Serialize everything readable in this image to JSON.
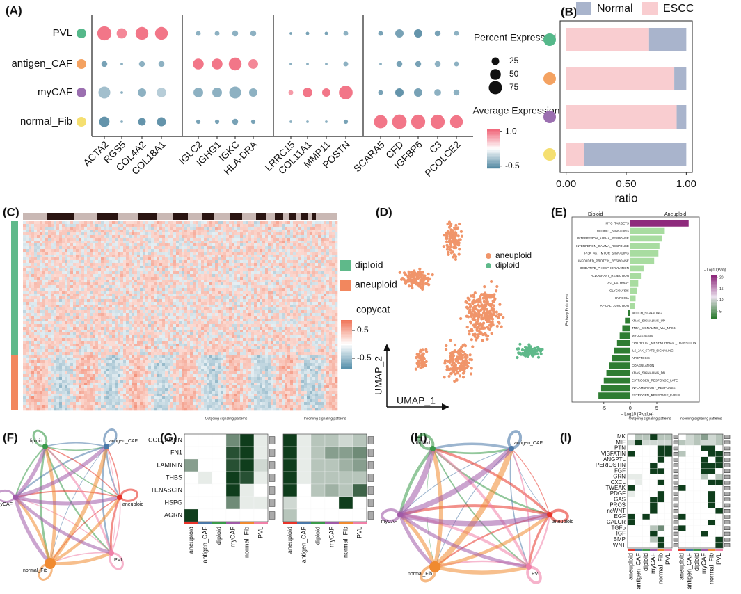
{
  "chart_data": [
    {
      "type": "bubble",
      "label": "(A)",
      "categories": [
        "ACTA2",
        "RGS5",
        "COL4A2",
        "COL18A1",
        "IGLC2",
        "IGHG1",
        "IGKC",
        "HLA-DRA",
        "LRRC15",
        "COL11A1",
        "MMP11",
        "POSTN",
        "SCARA5",
        "CFD",
        "IGFBP6",
        "C3",
        "PCOLCE2"
      ],
      "row_colors": [
        "#55b88a",
        "#f4a261",
        "#9b6fb0",
        "#f5df70"
      ],
      "series": [
        {
          "name": "PVL",
          "sizes": [
            85,
            45,
            70,
            70,
            10,
            10,
            15,
            15,
            3,
            5,
            5,
            10,
            10,
            30,
            30,
            15,
            10
          ],
          "values": [
            1.0,
            0.9,
            1.0,
            1.0,
            -0.3,
            -0.3,
            -0.3,
            -0.3,
            -0.4,
            -0.4,
            -0.4,
            -0.3,
            -0.4,
            -0.4,
            -0.5,
            -0.4,
            -0.3
          ]
        },
        {
          "name": "antigen_CAF",
          "sizes": [
            15,
            3,
            15,
            15,
            50,
            50,
            70,
            40,
            3,
            3,
            3,
            10,
            3,
            15,
            15,
            15,
            10
          ],
          "values": [
            -0.4,
            -0.3,
            -0.3,
            -0.3,
            1.0,
            1.0,
            1.0,
            0.9,
            -0.3,
            -0.3,
            -0.3,
            -0.3,
            -0.3,
            -0.4,
            -0.4,
            -0.3,
            -0.3
          ]
        },
        {
          "name": "myCAF",
          "sizes": [
            60,
            3,
            30,
            40,
            40,
            40,
            60,
            30,
            10,
            40,
            30,
            80,
            10,
            30,
            30,
            20,
            15
          ],
          "values": [
            -0.2,
            -0.3,
            -0.3,
            -0.1,
            -0.3,
            -0.3,
            -0.3,
            -0.3,
            0.8,
            1.0,
            1.0,
            1.0,
            -0.4,
            -0.5,
            -0.4,
            -0.3,
            -0.3
          ]
        },
        {
          "name": "normal_Fib",
          "sizes": [
            45,
            3,
            25,
            35,
            8,
            8,
            15,
            8,
            3,
            3,
            3,
            8,
            75,
            90,
            85,
            85,
            70
          ],
          "values": [
            -0.5,
            -0.3,
            -0.5,
            -0.5,
            -0.4,
            -0.4,
            -0.4,
            -0.4,
            -0.3,
            -0.3,
            -0.3,
            -0.4,
            1.0,
            1.0,
            1.0,
            1.0,
            1.0
          ]
        }
      ],
      "size_legend_title": "Percent Expressed",
      "size_ticks": [
        25,
        50,
        75
      ],
      "color_legend_title": "Average Expression",
      "clim": [
        -0.6,
        1.1
      ],
      "color_ticks": [
        {
          "value": 1,
          "label": "1.0"
        },
        -0.5
      ],
      "low_color": "#4f86a0",
      "mid_color": "#ffffff",
      "high_color": "#f06478"
    },
    {
      "type": "stacked-barh",
      "label": "(B)",
      "xlabel": "ratio",
      "xlim": [
        -0.05,
        1.05
      ],
      "xticks": [
        {
          "value": 0,
          "label": "0.00"
        },
        {
          "value": 0.5,
          "label": "0.50"
        },
        {
          "value": 1,
          "label": "1.00"
        }
      ],
      "series": [
        {
          "name": "Normal",
          "color": "#a9b4cc",
          "values": [
            0.31,
            0.1,
            0.08,
            0.85
          ]
        },
        {
          "name": "ESCC",
          "color": "#f9cdd0",
          "values": [
            0.69,
            0.9,
            0.92,
            0.15
          ]
        }
      ]
    },
    {
      "type": "heatmap-texture",
      "label": "(C)",
      "groups": [
        {
          "name": "diploid",
          "color": "#5fb98a"
        },
        {
          "name": "aneuploid",
          "color": "#f2875e"
        }
      ],
      "color_legend_title": "copycat",
      "color_ticks": [
        0.5,
        -0.5
      ]
    },
    {
      "type": "scatter-texture",
      "label": "(D)",
      "xlabel": "UMAP_1",
      "ylabel": "UMAP_2",
      "groups": [
        {
          "name": "aneuploid",
          "color": "#f0956a"
        },
        {
          "name": "diploid",
          "color": "#5fb98a"
        }
      ]
    },
    {
      "type": "barh",
      "label": "(E)",
      "left_title": "Diploid",
      "right_title": "Aneuploid",
      "ylabel": "Pathway Enrichment",
      "xlabel": "– Log10 (P value)",
      "legend_title": "– Log10(Padj)",
      "categories": [
        "MYC_TARGETS",
        "MTORC1_SIGNALING",
        "INTERFERON_ALPHA_RESPONSE",
        "INTERFERON_GAMMA_RESPONSE",
        "PI3K_AKT_MTOR_SIGNALING",
        "UNFOLDED_PROTEIN_RESPONSE",
        "OXIDATIVE_PHOSPHORYLATION",
        "ALLOGRAFT_REJECTION",
        "P53_PATHWAY",
        "GLYCOLYSIS",
        "HYPOXIA",
        "APICAL_JUNCTION",
        "NOTCH_SIGNALING",
        "KRAS_SIGNALING_UP",
        "TNFA_SIGNALING_VIA_NFKB",
        "MYOGENESIS",
        "EPITHELIAL_MESENCHYMAL_TRANSITION",
        "IL6_JAK_STAT3_SIGNALING",
        "APOPTOSIS",
        "COAGULATION",
        "KRAS_SIGNALING_DN",
        "ESTROGEN_RESPONSE_LATE",
        "INFLAMMATORY_RESPONSE",
        "ESTROGEN_RESPONSE_EARLY"
      ],
      "values": [
        11,
        6.5,
        6,
        5.5,
        5.3,
        4.5,
        2.5,
        2,
        1.5,
        1.2,
        1,
        0.8,
        -0.5,
        -1,
        -1.5,
        -2,
        -2.5,
        -3,
        -3.5,
        -4,
        -4.5,
        -5,
        -5.5,
        -6
      ],
      "top_color": "#8e2a7c",
      "positive_color": "#a8dca0",
      "negative_color": "#2e7d32",
      "xlim": [
        -11,
        13
      ],
      "xticks": [
        -5,
        0,
        5
      ],
      "colorbar_ticks": [
        5,
        10,
        15,
        20
      ],
      "clim": [
        2,
        21
      ]
    },
    {
      "type": "network",
      "label": "(F)",
      "nodes": [
        {
          "name": "diploid",
          "color": "#3a9a4a"
        },
        {
          "name": "antigen_CAF",
          "color": "#4a78a8"
        },
        {
          "name": "aneuploid",
          "color": "#e8342a"
        },
        {
          "name": "PVL",
          "color": "#f080a8"
        },
        {
          "name": "normal_Fib",
          "color": "#f08a30"
        },
        {
          "name": "myCAF",
          "color": "#a05aa8"
        }
      ]
    },
    {
      "type": "signaling-heatmap",
      "label": "(G)",
      "titles": [
        "Outgoing signaling patterns",
        "Incoming signaling patterns"
      ],
      "rows": [
        "COLLAGEN",
        "FN1",
        "LAMININ",
        "THBS",
        "TENASCIN",
        "HSPG",
        "AGRN"
      ],
      "columns": [
        "aneuploid",
        "antigen_CAF",
        "diploid",
        "myCAF",
        "normal_Fib",
        "PVL"
      ],
      "column_colors": [
        "#e8342a",
        "#4a78a8",
        "#3a9a4a",
        "#a05aa8",
        "#f08a30",
        "#f080a8"
      ],
      "outgoing": [
        [
          0,
          0,
          0,
          0.6,
          1,
          0.1
        ],
        [
          0,
          0,
          0,
          0.9,
          1,
          0.1
        ],
        [
          0.5,
          0,
          0,
          0.9,
          1,
          0.2
        ],
        [
          0,
          0.1,
          0,
          1,
          0.9,
          0.1
        ],
        [
          0,
          0,
          0,
          1,
          0.1,
          0
        ],
        [
          0,
          0,
          0,
          0.6,
          0.1,
          0.1
        ],
        [
          1,
          0,
          0,
          0,
          0,
          0
        ]
      ],
      "incoming": [
        [
          1,
          0.1,
          0.3,
          0.3,
          0.2,
          0.3
        ],
        [
          1,
          0.1,
          0.3,
          0.5,
          0.5,
          0.6
        ],
        [
          1,
          0.1,
          0.3,
          0.3,
          0.4,
          0.5
        ],
        [
          1,
          0.1,
          0.3,
          0.3,
          0.3,
          0.3
        ],
        [
          1,
          0,
          0.3,
          0.4,
          0.3,
          0.8
        ],
        [
          0.2,
          0,
          0,
          0,
          1,
          0
        ],
        [
          0.3,
          0,
          0,
          0,
          0,
          0
        ]
      ],
      "low_color": "#ffffff",
      "high_color": "#0f3d1c"
    },
    {
      "type": "network",
      "label": "(H)",
      "nodes": [
        {
          "name": "diploid",
          "color": "#3a9a4a"
        },
        {
          "name": "antigen_CAF",
          "color": "#4a78a8"
        },
        {
          "name": "aneuploid",
          "color": "#e8342a"
        },
        {
          "name": "PVL",
          "color": "#f080a8"
        },
        {
          "name": "normal_Fib",
          "color": "#f08a30"
        },
        {
          "name": "myCAF",
          "color": "#a05aa8"
        }
      ]
    },
    {
      "type": "signaling-heatmap",
      "label": "(I)",
      "titles": [
        "Outgoing signaling patterns",
        "Incoming signaling patterns"
      ],
      "rows": [
        "MK",
        "MIF",
        "PTN",
        "VISFATIN",
        "ANGPTL",
        "PERIOSTIN",
        "FGF",
        "GRN",
        "CXCL",
        "TWEAK",
        "PDGF",
        "GAS",
        "PROS",
        "ncWNT",
        "EGF",
        "CALCR",
        "TGFb",
        "IGF",
        "BMP",
        "WNT"
      ],
      "columns": [
        "aneuploid",
        "antigen_CAF",
        "diploid",
        "myCAF",
        "normal_Fib",
        "PVL"
      ],
      "column_colors": [
        "#e8342a",
        "#4a78a8",
        "#3a9a4a",
        "#a05aa8",
        "#f08a30",
        "#f080a8"
      ],
      "outgoing": [
        [
          0,
          0.3,
          0.3,
          1,
          0.3,
          0.3
        ],
        [
          0.2,
          1,
          0.2,
          0.2,
          0.2,
          0.2
        ],
        [
          0,
          0,
          0,
          0,
          1,
          1
        ],
        [
          1,
          0,
          0,
          0,
          1,
          1
        ],
        [
          0,
          0,
          0,
          0,
          1,
          0
        ],
        [
          0,
          0,
          0,
          1,
          0,
          0
        ],
        [
          0,
          0,
          0,
          1,
          1,
          0
        ],
        [
          0.1,
          0.1,
          0,
          0,
          0,
          0
        ],
        [
          0,
          0.1,
          0,
          0,
          1,
          0
        ],
        [
          1,
          0,
          0,
          0,
          0,
          0
        ],
        [
          0.1,
          0,
          0,
          0,
          1,
          0
        ],
        [
          0,
          0,
          0,
          1,
          1,
          0
        ],
        [
          0,
          0,
          0,
          1,
          0,
          0
        ],
        [
          0,
          0,
          0,
          1,
          0,
          0
        ],
        [
          1,
          0,
          1,
          0,
          0,
          0
        ],
        [
          1,
          0,
          0,
          0,
          0,
          0
        ],
        [
          0,
          0,
          0,
          0.3,
          0.6,
          0
        ],
        [
          0,
          0,
          0,
          1,
          0,
          0
        ],
        [
          0,
          0,
          0,
          0.3,
          1,
          0
        ],
        [
          0,
          0,
          0,
          0,
          1,
          0
        ]
      ],
      "incoming": [
        [
          0,
          0.2,
          0.3,
          0.5,
          0.2,
          0.3
        ],
        [
          0.3,
          0.2,
          0.3,
          0.2,
          0.2,
          0.3
        ],
        [
          0,
          0,
          0,
          1,
          1,
          0
        ],
        [
          0.3,
          0,
          0,
          0,
          1,
          1
        ],
        [
          0,
          0,
          0,
          1,
          0,
          1
        ],
        [
          0,
          0,
          0,
          1,
          1,
          1
        ],
        [
          0,
          0,
          0,
          1,
          1,
          0
        ],
        [
          0,
          0,
          0,
          0.3,
          0,
          0.3
        ],
        [
          0,
          0,
          0,
          0,
          1,
          1
        ],
        [
          1,
          0,
          0,
          0,
          0,
          0
        ],
        [
          0,
          0,
          0,
          0,
          1,
          0
        ],
        [
          0,
          0,
          0,
          0,
          1,
          0
        ],
        [
          0,
          0,
          0,
          0,
          1,
          0
        ],
        [
          0,
          0,
          0,
          0,
          0,
          1
        ],
        [
          1,
          0,
          0,
          0,
          0,
          0
        ],
        [
          0,
          0,
          0,
          0,
          1,
          0
        ],
        [
          1,
          0,
          0,
          0,
          0,
          0
        ],
        [
          0,
          0,
          0,
          1,
          0,
          0
        ],
        [
          0,
          0,
          0,
          0,
          0,
          1
        ],
        [
          0,
          0,
          0,
          0,
          0,
          1
        ]
      ],
      "low_color": "#ffffff",
      "high_color": "#0f3d1c"
    }
  ]
}
